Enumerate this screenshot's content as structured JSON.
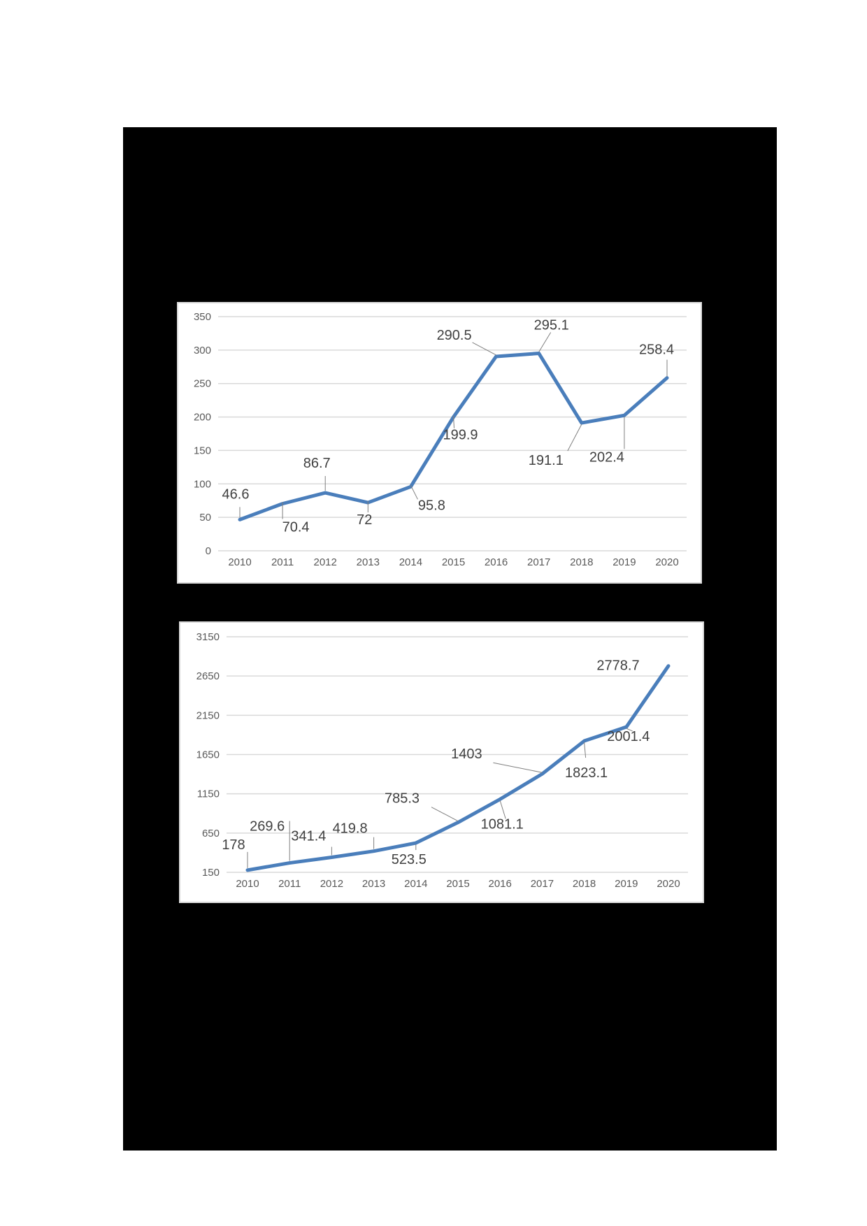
{
  "page": {
    "background": "#ffffff",
    "block_color": "#000000"
  },
  "colors": {
    "series": "#4a7ebb",
    "grid": "#d9d9d9",
    "tick_text": "#595959",
    "label_text": "#404040"
  },
  "chart_data": [
    {
      "type": "line",
      "title": "",
      "xlabel": "",
      "ylabel": "",
      "categories": [
        "2010",
        "2011",
        "2012",
        "2013",
        "2014",
        "2015",
        "2016",
        "2017",
        "2018",
        "2019",
        "2020"
      ],
      "values": [
        46.6,
        70.4,
        86.7,
        72,
        95.8,
        199.9,
        290.5,
        295.1,
        191.1,
        202.4,
        258.4
      ],
      "data_labels": [
        "46.6",
        "70.4",
        "86.7",
        "72",
        "95.8",
        "199.9",
        "290.5",
        "295.1",
        "191.1",
        "202.4",
        "258.4"
      ],
      "yticks": [
        0,
        50,
        100,
        150,
        200,
        250,
        300,
        350
      ],
      "ylim": [
        0,
        350
      ],
      "grid": true,
      "legend": "none"
    },
    {
      "type": "line",
      "title": "",
      "xlabel": "",
      "ylabel": "",
      "categories": [
        "2010",
        "2011",
        "2012",
        "2013",
        "2014",
        "2015",
        "2016",
        "2017",
        "2018",
        "2019",
        "2020"
      ],
      "values": [
        178,
        269.6,
        341.4,
        419.8,
        523.5,
        785.3,
        1081.1,
        1403,
        1823.1,
        2001.4,
        2778.7
      ],
      "data_labels": [
        "178",
        "269.6",
        "341.4",
        "419.8",
        "523.5",
        "785.3",
        "1081.1",
        "1403",
        "1823.1",
        "2001.4",
        "2778.7"
      ],
      "yticks": [
        150,
        650,
        1150,
        1650,
        2150,
        2650,
        3150
      ],
      "ylim": [
        150,
        3150
      ],
      "grid": true,
      "legend": "none"
    }
  ]
}
